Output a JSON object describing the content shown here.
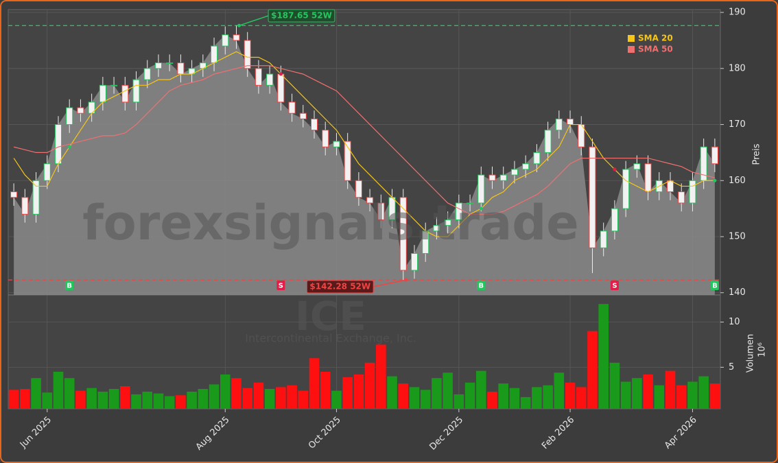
{
  "chart_data": {
    "type": "candlestick",
    "watermark": "forexsignals.trade",
    "symbol": "ICE",
    "company": "Intercontinental Exchange, Inc.",
    "y_label": "Preis",
    "categories": [
      null,
      null,
      null,
      "Jun 2025",
      null,
      null,
      null,
      null,
      null,
      null,
      null,
      null,
      null,
      null,
      null,
      null,
      null,
      null,
      null,
      "Aug 2025",
      null,
      null,
      null,
      null,
      null,
      null,
      null,
      null,
      null,
      "Oct 2025",
      null,
      null,
      null,
      null,
      null,
      null,
      null,
      null,
      null,
      null,
      "Dec 2025",
      null,
      null,
      null,
      null,
      null,
      null,
      null,
      null,
      null,
      "Feb 2026",
      null,
      null,
      null,
      null,
      null,
      null,
      null,
      null,
      null,
      null,
      "Apr 2026",
      null,
      null
    ],
    "open": [
      158,
      157,
      154,
      160,
      163,
      170,
      173,
      172,
      174,
      177,
      177,
      174,
      178,
      180,
      181,
      181,
      179,
      180,
      181,
      184,
      186,
      185,
      180,
      177,
      179,
      174,
      172,
      171,
      169,
      166,
      167,
      160,
      157,
      156,
      153,
      157,
      144,
      147,
      151,
      152,
      153,
      156,
      156,
      161,
      160,
      161,
      162,
      163,
      165,
      169,
      171,
      170,
      166,
      148,
      151,
      155,
      162,
      163,
      158,
      160,
      158,
      156,
      160,
      166
    ],
    "high": [
      159.5,
      158.5,
      161.5,
      164.5,
      171.5,
      174.5,
      174.5,
      175.5,
      178.5,
      178.5,
      178.5,
      179.5,
      181.5,
      182.5,
      182.5,
      182.5,
      181.5,
      182.5,
      185.5,
      187.5,
      187.65,
      186.5,
      181.5,
      180.5,
      180.5,
      175.5,
      173.5,
      172.5,
      170.5,
      168.5,
      168.5,
      161.5,
      158.5,
      157.5,
      158.5,
      158.5,
      148.5,
      152.5,
      153.5,
      154.5,
      157.5,
      157.5,
      162.5,
      162.5,
      162.5,
      163.5,
      164.5,
      166.5,
      170.5,
      172.5,
      172.5,
      171.5,
      167.5,
      152.5,
      156.5,
      163.5,
      164.5,
      164.5,
      161.5,
      161.5,
      159.5,
      161.5,
      167.5,
      167.5
    ],
    "low": [
      155.5,
      152.5,
      152.5,
      158.5,
      161.5,
      168.5,
      170.5,
      170.5,
      172.5,
      175.5,
      172.5,
      172.5,
      176.5,
      178.5,
      179.5,
      177.5,
      177.5,
      178.5,
      179.5,
      182.5,
      183.5,
      178.5,
      175.5,
      175.5,
      172.5,
      170.5,
      169.5,
      167.5,
      164.5,
      164.5,
      158.5,
      155.5,
      154.5,
      151.5,
      151.5,
      142.28,
      142.5,
      145.5,
      149.5,
      150.5,
      151.5,
      154.5,
      154.5,
      158.5,
      158.5,
      159.5,
      160.5,
      161.5,
      163.5,
      167.5,
      168.5,
      164.5,
      143.5,
      146.5,
      149.5,
      153.5,
      160.5,
      156.5,
      156.5,
      156.5,
      154.5,
      154.5,
      158.5,
      161.5
    ],
    "close": [
      157,
      154,
      160,
      163,
      170,
      173,
      172,
      174,
      177,
      177,
      174,
      178,
      180,
      181,
      181,
      179,
      180,
      181,
      184,
      186,
      185,
      180,
      177,
      179,
      174,
      172,
      171,
      169,
      166,
      167,
      160,
      157,
      156,
      153,
      157,
      144,
      147,
      151,
      152,
      153,
      156,
      156,
      161,
      160,
      161,
      162,
      163,
      165,
      169,
      171,
      170,
      166,
      148,
      151,
      155,
      162,
      163,
      158,
      160,
      158,
      156,
      160,
      166,
      163
    ],
    "up_color": "#22c55e",
    "down_color": "#ef4444",
    "area_color": "#8a8a8a",
    "series": [
      {
        "name": "SMA 20",
        "color": "#f5c518",
        "values": [
          164,
          161,
          159,
          159,
          163,
          166,
          169,
          172,
          174,
          175,
          176,
          177,
          177,
          178,
          178,
          179,
          179,
          180,
          181,
          182,
          183,
          182,
          182,
          181,
          179,
          177,
          175,
          173,
          171,
          169,
          166,
          163,
          161,
          159,
          157,
          155,
          153,
          151,
          150,
          150,
          152,
          154,
          155,
          157,
          158,
          160,
          161,
          162,
          164,
          166,
          170,
          170,
          167,
          164,
          162,
          160,
          159,
          158,
          159,
          160,
          159,
          159,
          160,
          160
        ]
      },
      {
        "name": "SMA 50",
        "color": "#f07070",
        "values": [
          166,
          165.5,
          165,
          165,
          166,
          166.5,
          167,
          167.5,
          168,
          168,
          168.5,
          170,
          172,
          174,
          176,
          177,
          177.5,
          178,
          179,
          179.5,
          180,
          180.5,
          180.5,
          180.5,
          180,
          179.5,
          179,
          178,
          177,
          176,
          174,
          172,
          170,
          168,
          166,
          164,
          162,
          160,
          158,
          156,
          155,
          154,
          154,
          154,
          154.5,
          155.5,
          156.5,
          157.5,
          159,
          161,
          163,
          164,
          164,
          164,
          164,
          164,
          164,
          164,
          163.5,
          163,
          162.5,
          161.5,
          161,
          160.5
        ]
      }
    ],
    "ylim": [
      139.6,
      190.5
    ],
    "yticks": [
      140,
      150,
      160,
      170,
      180,
      190
    ],
    "grid": true,
    "legend": "upper right",
    "annotations": [
      {
        "text": "$187.65 52W",
        "value": 187.65,
        "index": 20,
        "color": "#22c55e"
      },
      {
        "text": "$142.28 52W",
        "value": 142.28,
        "index": 35,
        "color": "#ef4444"
      }
    ],
    "signals": [
      {
        "index": 5,
        "label": "B",
        "color": "#22c55e"
      },
      {
        "index": 24,
        "label": "S",
        "color": "#e11d48"
      },
      {
        "index": 42,
        "label": "B",
        "color": "#22c55e"
      },
      {
        "index": 54,
        "label": "S",
        "color": "#e11d48"
      },
      {
        "index": 63,
        "label": "B",
        "color": "#22c55e"
      }
    ],
    "volume": {
      "label": "Volumen",
      "multiplier": "10⁶",
      "values": [
        2.5,
        2.6,
        3.8,
        2.2,
        4.5,
        3.8,
        2.4,
        2.7,
        2.3,
        2.6,
        2.9,
        2.0,
        2.3,
        2.1,
        1.8,
        1.9,
        2.3,
        2.6,
        3.1,
        4.2,
        3.8,
        2.7,
        3.3,
        2.6,
        2.8,
        3.0,
        2.4,
        6.0,
        4.5,
        2.4,
        3.9,
        4.2,
        5.5,
        7.5,
        4.0,
        3.2,
        2.8,
        2.5,
        3.8,
        4.4,
        2.0,
        3.3,
        4.6,
        2.3,
        3.2,
        2.7,
        1.7,
        2.8,
        3.0,
        4.4,
        3.3,
        2.8,
        9.0,
        12.0,
        5.5,
        3.4,
        3.8,
        4.2,
        3.0,
        4.6,
        3.0,
        3.4,
        4.0,
        3.2
      ],
      "ylim": [
        0.4,
        13
      ],
      "yticks": [
        5,
        10
      ]
    }
  }
}
